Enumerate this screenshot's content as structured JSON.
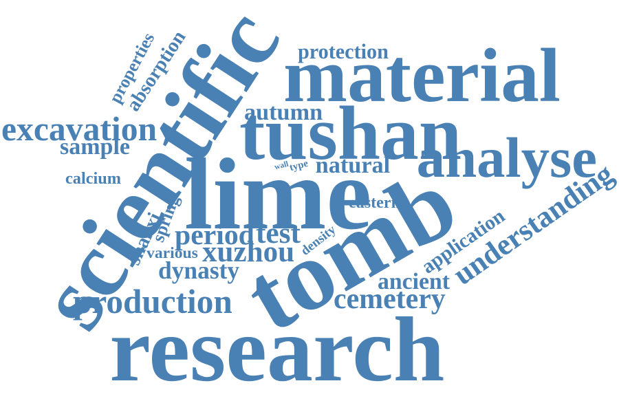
{
  "color": "#4a81b4",
  "words": [
    {
      "id": "scientific",
      "text": "scientific"
    },
    {
      "id": "tomb",
      "text": "tomb"
    },
    {
      "id": "lime",
      "text": "lime"
    },
    {
      "id": "research",
      "text": "research"
    },
    {
      "id": "tushan",
      "text": "tushan"
    },
    {
      "id": "material",
      "text": "material"
    },
    {
      "id": "analyse",
      "text": "analyse"
    },
    {
      "id": "production",
      "text": "production"
    },
    {
      "id": "excavation",
      "text": "excavation"
    },
    {
      "id": "understanding",
      "text": "understanding"
    },
    {
      "id": "cemetery",
      "text": "cemetery"
    },
    {
      "id": "period",
      "text": "period"
    },
    {
      "id": "test",
      "text": "test"
    },
    {
      "id": "xuzhou",
      "text": "xuzhou"
    },
    {
      "id": "dynasty",
      "text": "dynasty"
    },
    {
      "id": "ancient",
      "text": "ancient"
    },
    {
      "id": "application",
      "text": "application"
    },
    {
      "id": "protection",
      "text": "protection"
    },
    {
      "id": "autumn",
      "text": "autumn"
    },
    {
      "id": "natural",
      "text": "natural"
    },
    {
      "id": "properties",
      "text": "properties"
    },
    {
      "id": "absorption",
      "text": "absorption"
    },
    {
      "id": "sample",
      "text": "sample"
    },
    {
      "id": "calcium",
      "text": "calcium"
    },
    {
      "id": "eastern",
      "text": "eastern"
    },
    {
      "id": "spring",
      "text": "spring"
    },
    {
      "id": "shanxi",
      "text": "shanxi"
    },
    {
      "id": "various",
      "text": "various"
    },
    {
      "id": "density",
      "text": "density"
    },
    {
      "id": "wall",
      "text": "wall"
    },
    {
      "id": "type",
      "text": "type"
    }
  ]
}
